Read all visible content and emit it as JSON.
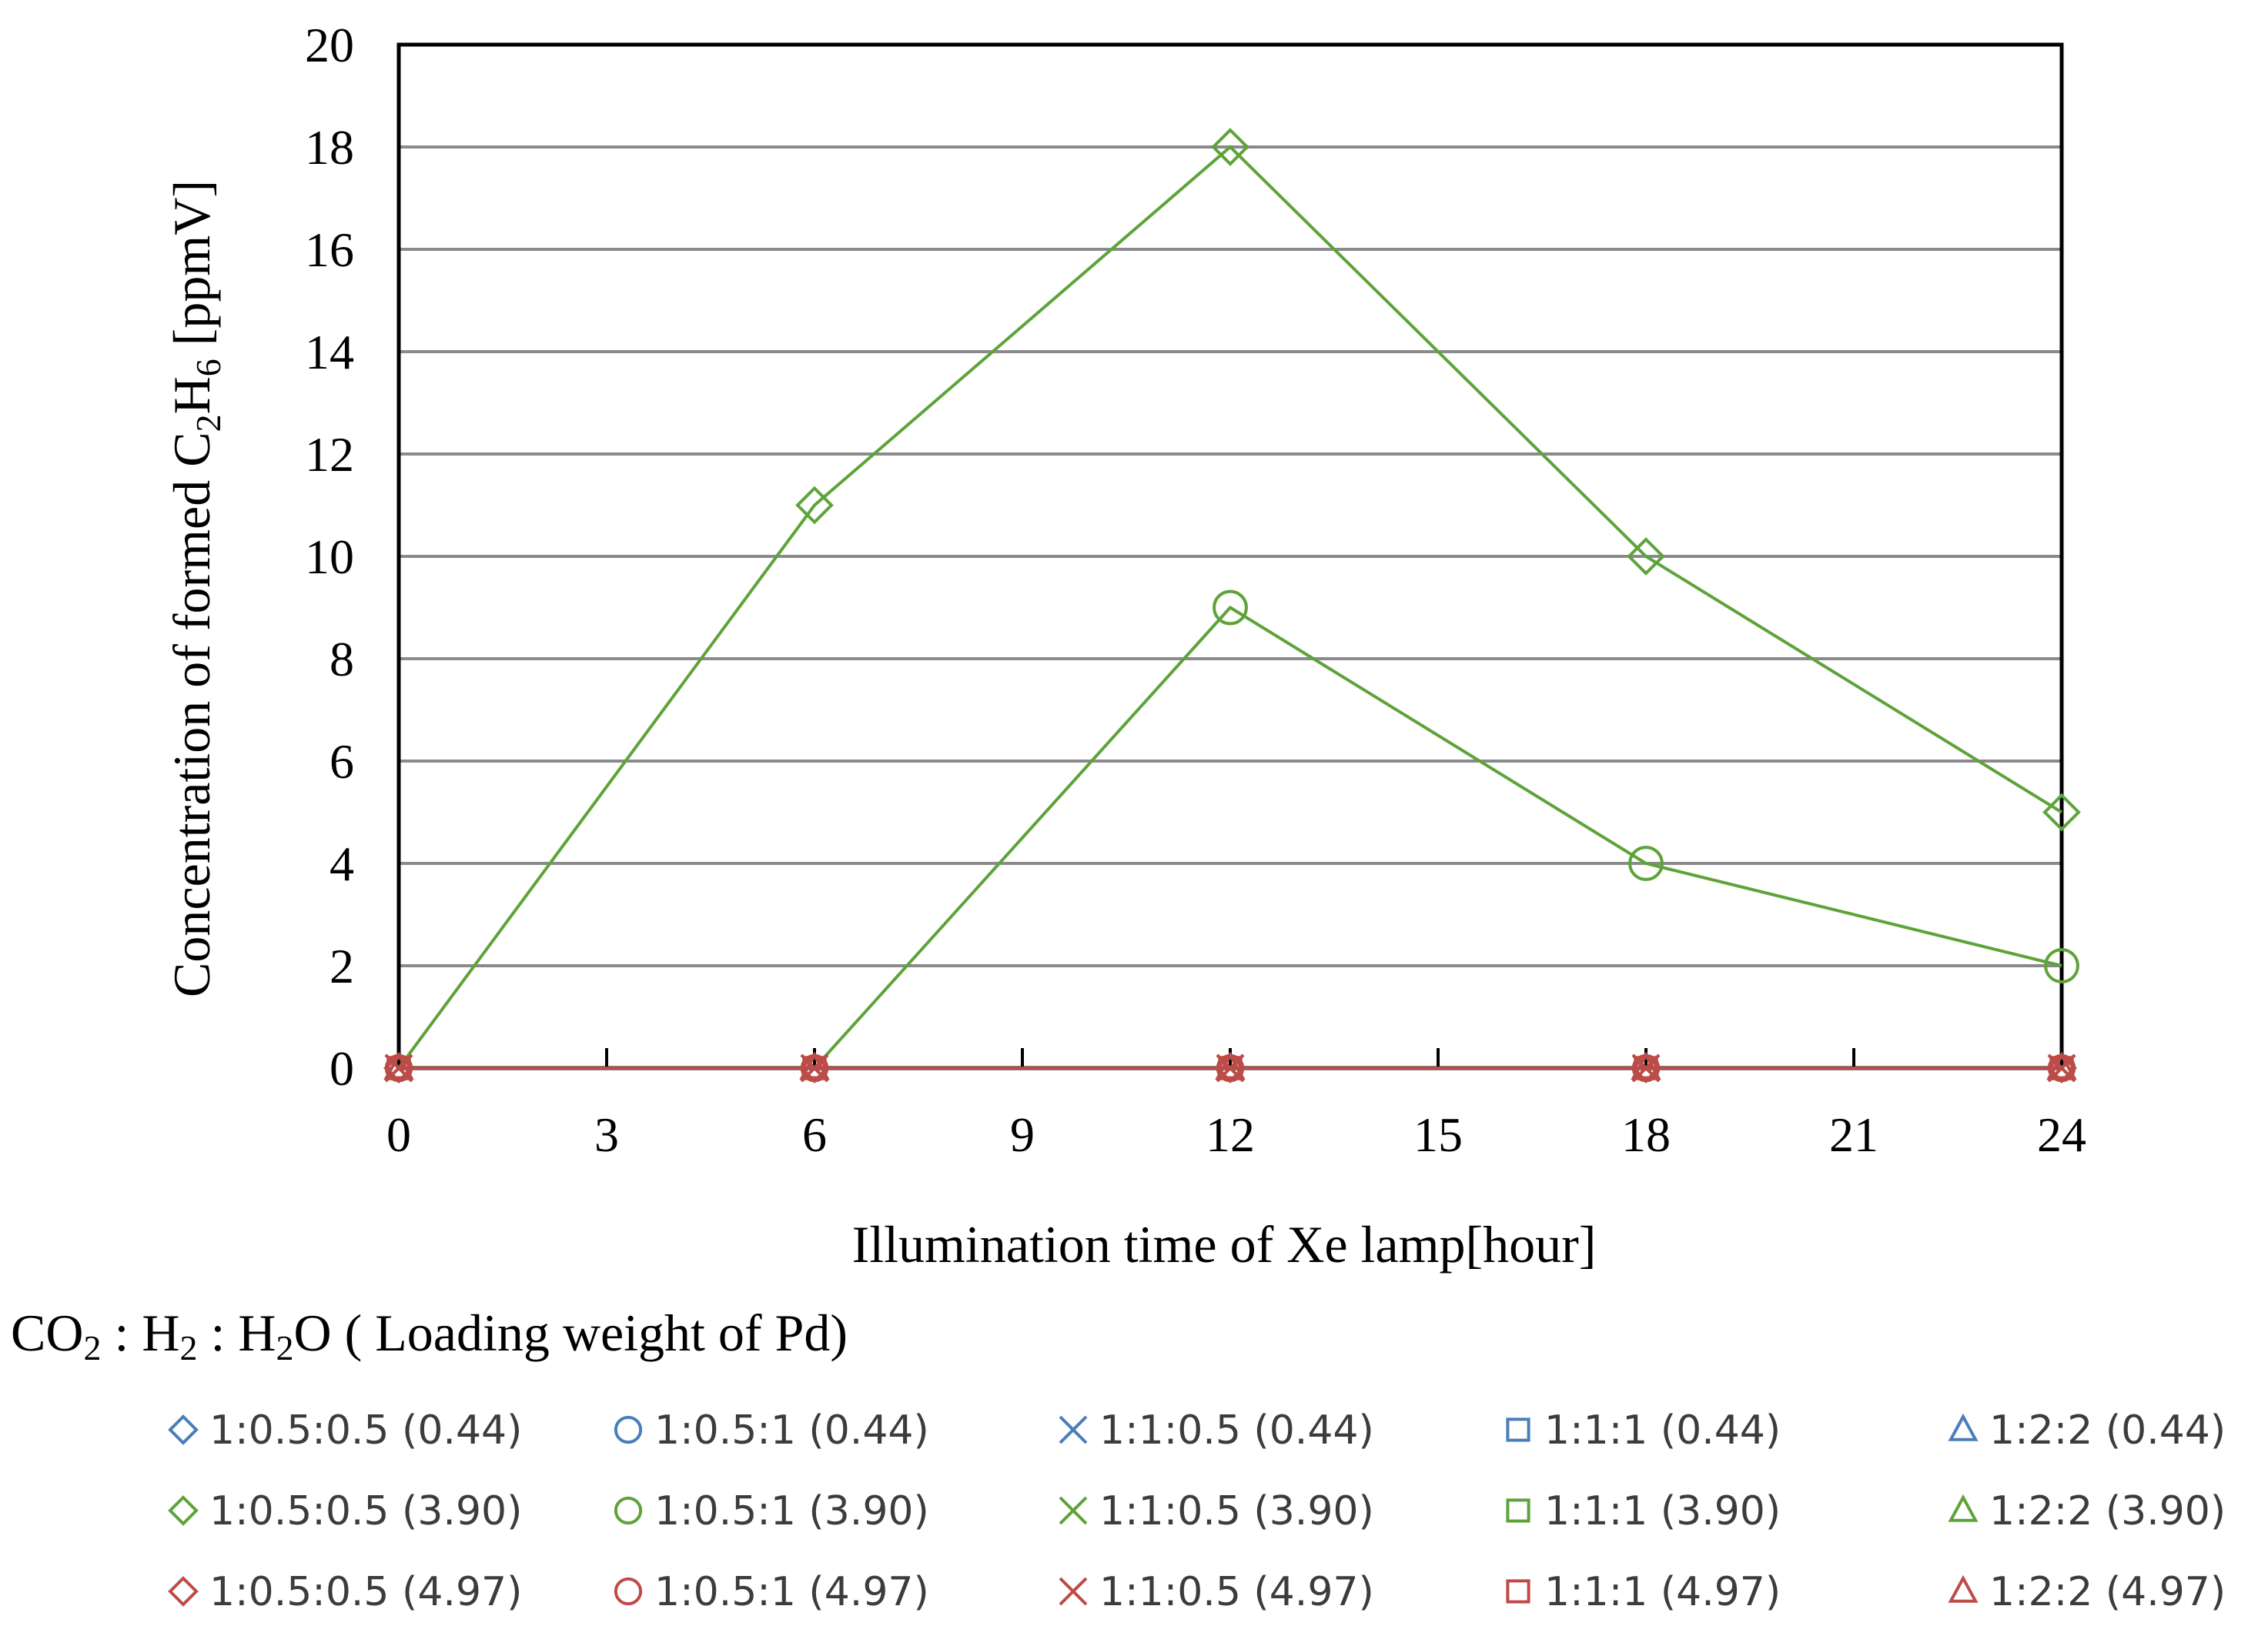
{
  "chart_data": {
    "type": "line",
    "xlabel": "Illumination time of Xe lamp[hour]",
    "ylabel": {
      "prefix": "Concentration of formed C",
      "sub1": "2",
      "mid": "H",
      "sub2": "6",
      "suffix": " [ppmV]"
    },
    "xlim": [
      0,
      24
    ],
    "ylim": [
      0,
      20
    ],
    "x_ticks": [
      0,
      3,
      6,
      9,
      12,
      15,
      18,
      21,
      24
    ],
    "y_ticks": [
      0,
      2,
      4,
      6,
      8,
      10,
      12,
      14,
      16,
      18,
      20
    ],
    "grid": {
      "horizontal": true,
      "vertical": false
    },
    "x": [
      0,
      6,
      12,
      18,
      24
    ],
    "legend_title": {
      "p1": "CO",
      "s1": "2",
      "p2": " : H",
      "s2": "2",
      "p3": " : H",
      "s3": "2",
      "p4": "O ( Loading weight of Pd)"
    },
    "legend_position": "bottom",
    "series": [
      {
        "name": "1:0.5:0.5 (0.44)",
        "marker": "diamond",
        "color": "#4a7ebb",
        "values": [
          0,
          0,
          0,
          0,
          0
        ]
      },
      {
        "name": "1:0.5:1 (0.44)",
        "marker": "circle",
        "color": "#4a7ebb",
        "values": [
          0,
          0,
          0,
          0,
          0
        ]
      },
      {
        "name": "1:1:0.5 (0.44)",
        "marker": "x",
        "color": "#4a7ebb",
        "values": [
          0,
          0,
          0,
          0,
          0
        ]
      },
      {
        "name": "1:1:1 (0.44)",
        "marker": "square",
        "color": "#4a7ebb",
        "values": [
          0,
          0,
          0,
          0,
          0
        ]
      },
      {
        "name": "1:2:2 (0.44)",
        "marker": "triangle",
        "color": "#4a7ebb",
        "values": [
          0,
          0,
          0,
          0,
          0
        ]
      },
      {
        "name": "1:0.5:0.5 (3.90)",
        "marker": "diamond",
        "color": "#5ea33a",
        "values": [
          0,
          11,
          18,
          10,
          5
        ]
      },
      {
        "name": "1:0.5:1 (3.90)",
        "marker": "circle",
        "color": "#5ea33a",
        "values": [
          0,
          0,
          9,
          4,
          2
        ]
      },
      {
        "name": "1:1:0.5 (3.90)",
        "marker": "x",
        "color": "#5ea33a",
        "values": [
          0,
          0,
          0,
          0,
          0
        ]
      },
      {
        "name": "1:1:1 (3.90)",
        "marker": "square",
        "color": "#5ea33a",
        "values": [
          0,
          0,
          0,
          0,
          0
        ]
      },
      {
        "name": "1:2:2 (3.90)",
        "marker": "triangle",
        "color": "#5ea33a",
        "values": [
          0,
          0,
          0,
          0,
          0
        ]
      },
      {
        "name": "1:0.5:0.5 (4.97)",
        "marker": "diamond",
        "color": "#be4b48",
        "values": [
          0,
          0,
          0,
          0,
          0
        ]
      },
      {
        "name": "1:0.5:1 (4.97)",
        "marker": "circle",
        "color": "#be4b48",
        "values": [
          0,
          0,
          0,
          0,
          0
        ]
      },
      {
        "name": "1:1:0.5 (4.97)",
        "marker": "x",
        "color": "#be4b48",
        "values": [
          0,
          0,
          0,
          0,
          0
        ]
      },
      {
        "name": "1:1:1 (4.97)",
        "marker": "square",
        "color": "#be4b48",
        "values": [
          0,
          0,
          0,
          0,
          0
        ]
      },
      {
        "name": "1:2:2 (4.97)",
        "marker": "triangle",
        "color": "#be4b48",
        "values": [
          0,
          0,
          0,
          0,
          0
        ]
      }
    ]
  }
}
